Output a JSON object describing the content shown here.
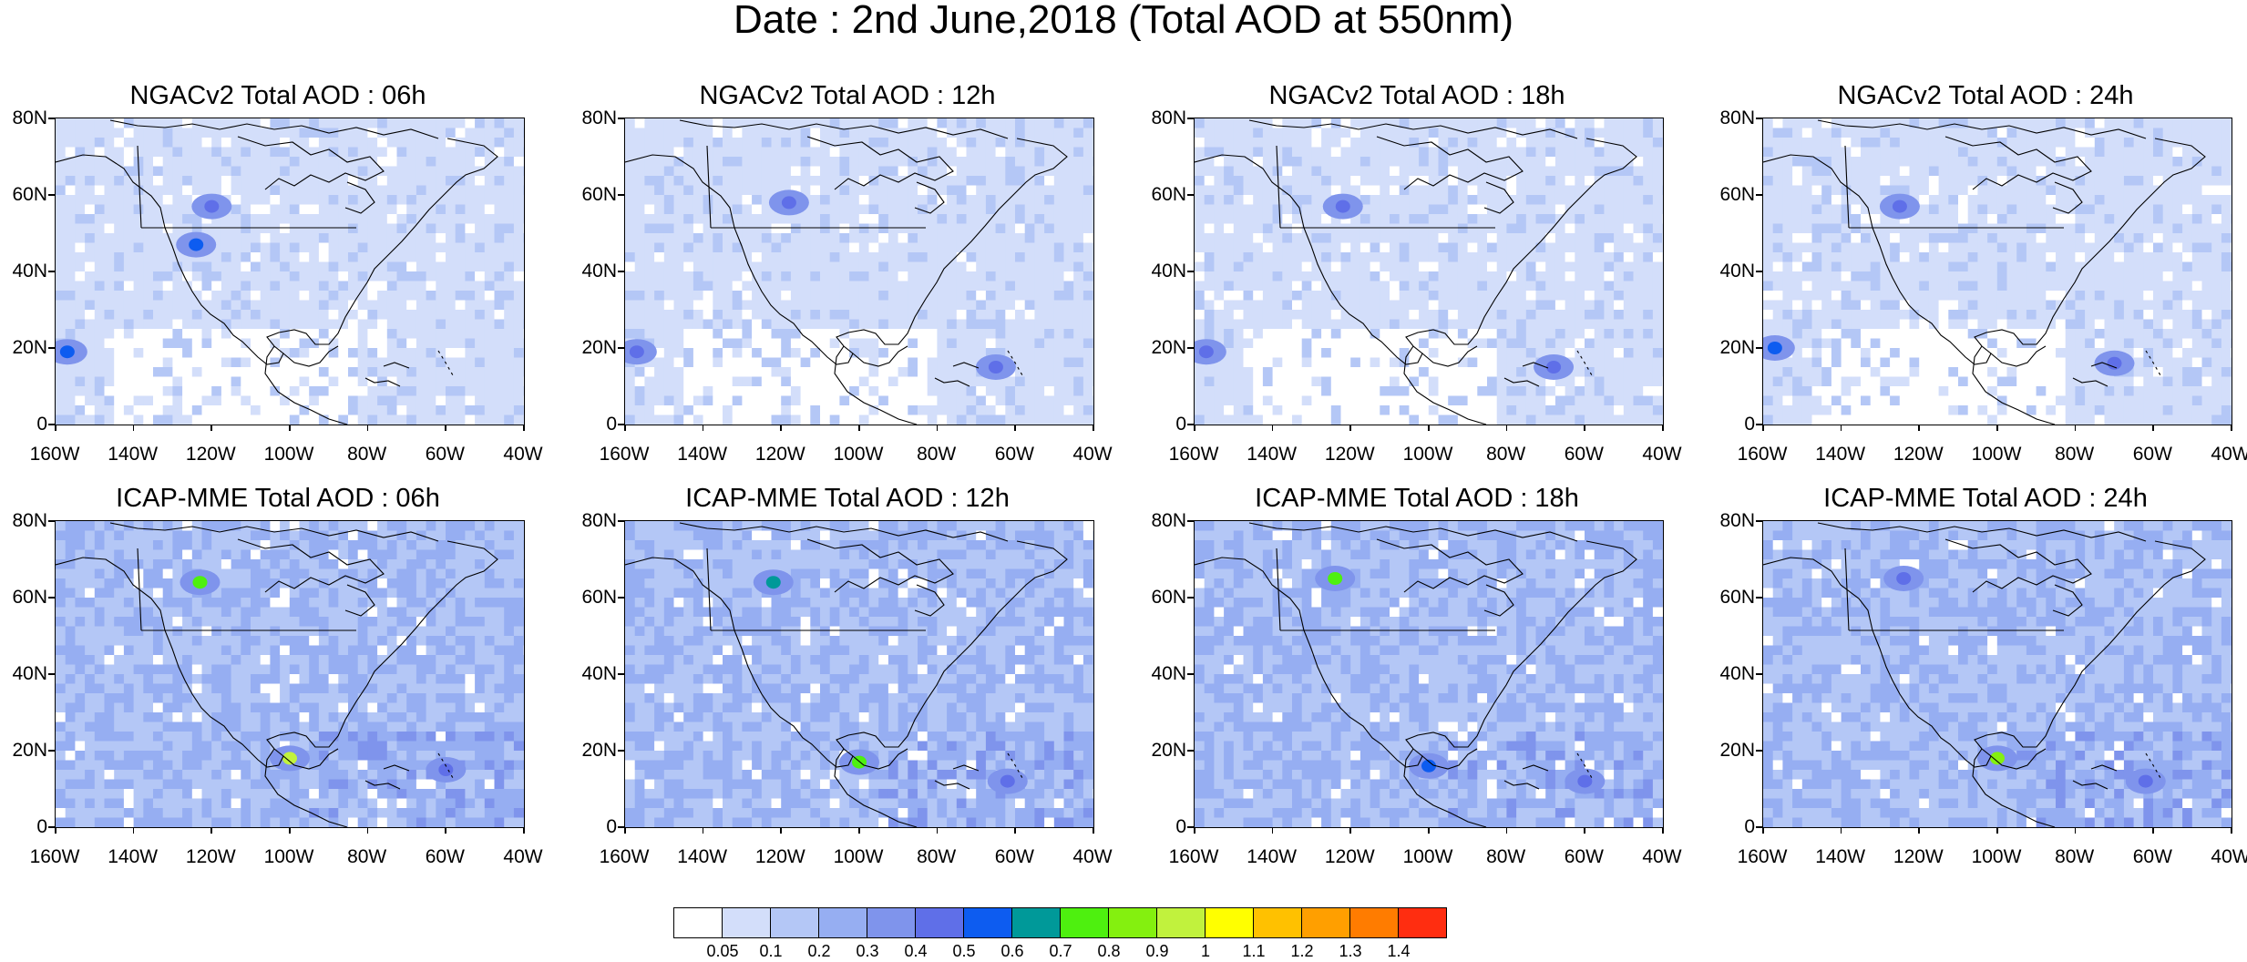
{
  "title": "Date : 2nd June,2018 (Total AOD at 550nm)",
  "lat_labels": [
    "80N",
    "60N",
    "40N",
    "20N",
    "0"
  ],
  "lon_labels": [
    "160W",
    "140W",
    "120W",
    "100W",
    "80W",
    "60W",
    "40W"
  ],
  "panels": [
    {
      "title": "NGACv2 Total AOD : 06h",
      "model": "NGACv2",
      "hour": "06h",
      "plumes": [
        {
          "lon": -124,
          "lat": 47,
          "level": 0.5
        },
        {
          "lon": -120,
          "lat": 57,
          "level": 0.4
        },
        {
          "lon": -157,
          "lat": 19,
          "level": 0.5
        }
      ]
    },
    {
      "title": "NGACv2 Total AOD : 12h",
      "model": "NGACv2",
      "hour": "12h",
      "plumes": [
        {
          "lon": -118,
          "lat": 58,
          "level": 0.4
        },
        {
          "lon": -157,
          "lat": 19,
          "level": 0.4
        },
        {
          "lon": -65,
          "lat": 15,
          "level": 0.4
        }
      ]
    },
    {
      "title": "NGACv2 Total AOD : 18h",
      "model": "NGACv2",
      "hour": "18h",
      "plumes": [
        {
          "lon": -122,
          "lat": 57,
          "level": 0.4
        },
        {
          "lon": -157,
          "lat": 19,
          "level": 0.4
        },
        {
          "lon": -68,
          "lat": 15,
          "level": 0.4
        }
      ]
    },
    {
      "title": "NGACv2 Total AOD : 24h",
      "model": "NGACv2",
      "hour": "24h",
      "plumes": [
        {
          "lon": -125,
          "lat": 57,
          "level": 0.4
        },
        {
          "lon": -157,
          "lat": 20,
          "level": 0.5
        },
        {
          "lon": -70,
          "lat": 16,
          "level": 0.4
        }
      ]
    },
    {
      "title": "ICAP-MME Total AOD : 06h",
      "model": "ICAP-MME",
      "hour": "06h",
      "plumes": [
        {
          "lon": -123,
          "lat": 64,
          "level": 0.7
        },
        {
          "lon": -100,
          "lat": 18,
          "level": 0.9
        },
        {
          "lon": -60,
          "lat": 15,
          "level": 0.4
        }
      ]
    },
    {
      "title": "ICAP-MME Total AOD : 12h",
      "model": "ICAP-MME",
      "hour": "12h",
      "plumes": [
        {
          "lon": -122,
          "lat": 64,
          "level": 0.6
        },
        {
          "lon": -100,
          "lat": 17,
          "level": 0.7
        },
        {
          "lon": -62,
          "lat": 12,
          "level": 0.4
        }
      ]
    },
    {
      "title": "ICAP-MME Total AOD : 18h",
      "model": "ICAP-MME",
      "hour": "18h",
      "plumes": [
        {
          "lon": -124,
          "lat": 65,
          "level": 0.7
        },
        {
          "lon": -100,
          "lat": 16,
          "level": 0.5
        },
        {
          "lon": -60,
          "lat": 12,
          "level": 0.4
        }
      ]
    },
    {
      "title": "ICAP-MME Total AOD : 24h",
      "model": "ICAP-MME",
      "hour": "24h",
      "plumes": [
        {
          "lon": -124,
          "lat": 65,
          "level": 0.4
        },
        {
          "lon": -100,
          "lat": 18,
          "level": 0.8
        },
        {
          "lon": -62,
          "lat": 12,
          "level": 0.4
        }
      ]
    }
  ],
  "colorbar": {
    "labels": [
      "0.05",
      "0.1",
      "0.2",
      "0.3",
      "0.4",
      "0.5",
      "0.6",
      "0.7",
      "0.8",
      "0.9",
      "1",
      "1.1",
      "1.2",
      "1.3",
      "1.4"
    ],
    "colors": [
      "#ffffff",
      "#d3defa",
      "#b4c7f6",
      "#96aef2",
      "#7f94ec",
      "#5f6fe8",
      "#0d5cf0",
      "#009999",
      "#4ef00f",
      "#84f00f",
      "#c1f23d",
      "#ffff00",
      "#ffc100",
      "#ff9f00",
      "#ff7c00",
      "#ff2d10"
    ]
  }
}
